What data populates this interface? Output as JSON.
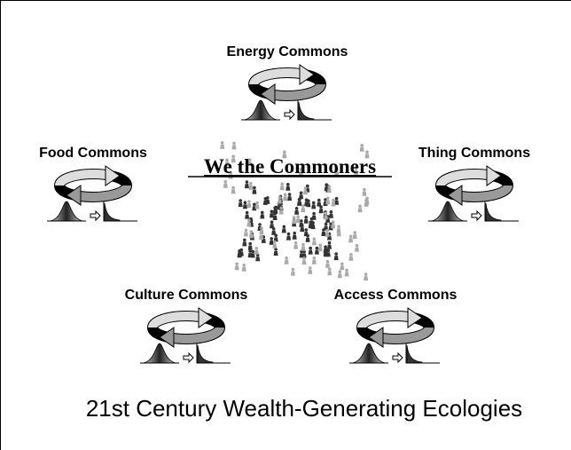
{
  "center_title": "We the Commoners",
  "nodes": [
    {
      "label": "Energy Commons"
    },
    {
      "label": "Food Commons"
    },
    {
      "label": "Thing Commons"
    },
    {
      "label": "Culture Commons"
    },
    {
      "label": "Access Commons"
    }
  ],
  "footer": "21st Century Wealth-Generating Ecologies"
}
